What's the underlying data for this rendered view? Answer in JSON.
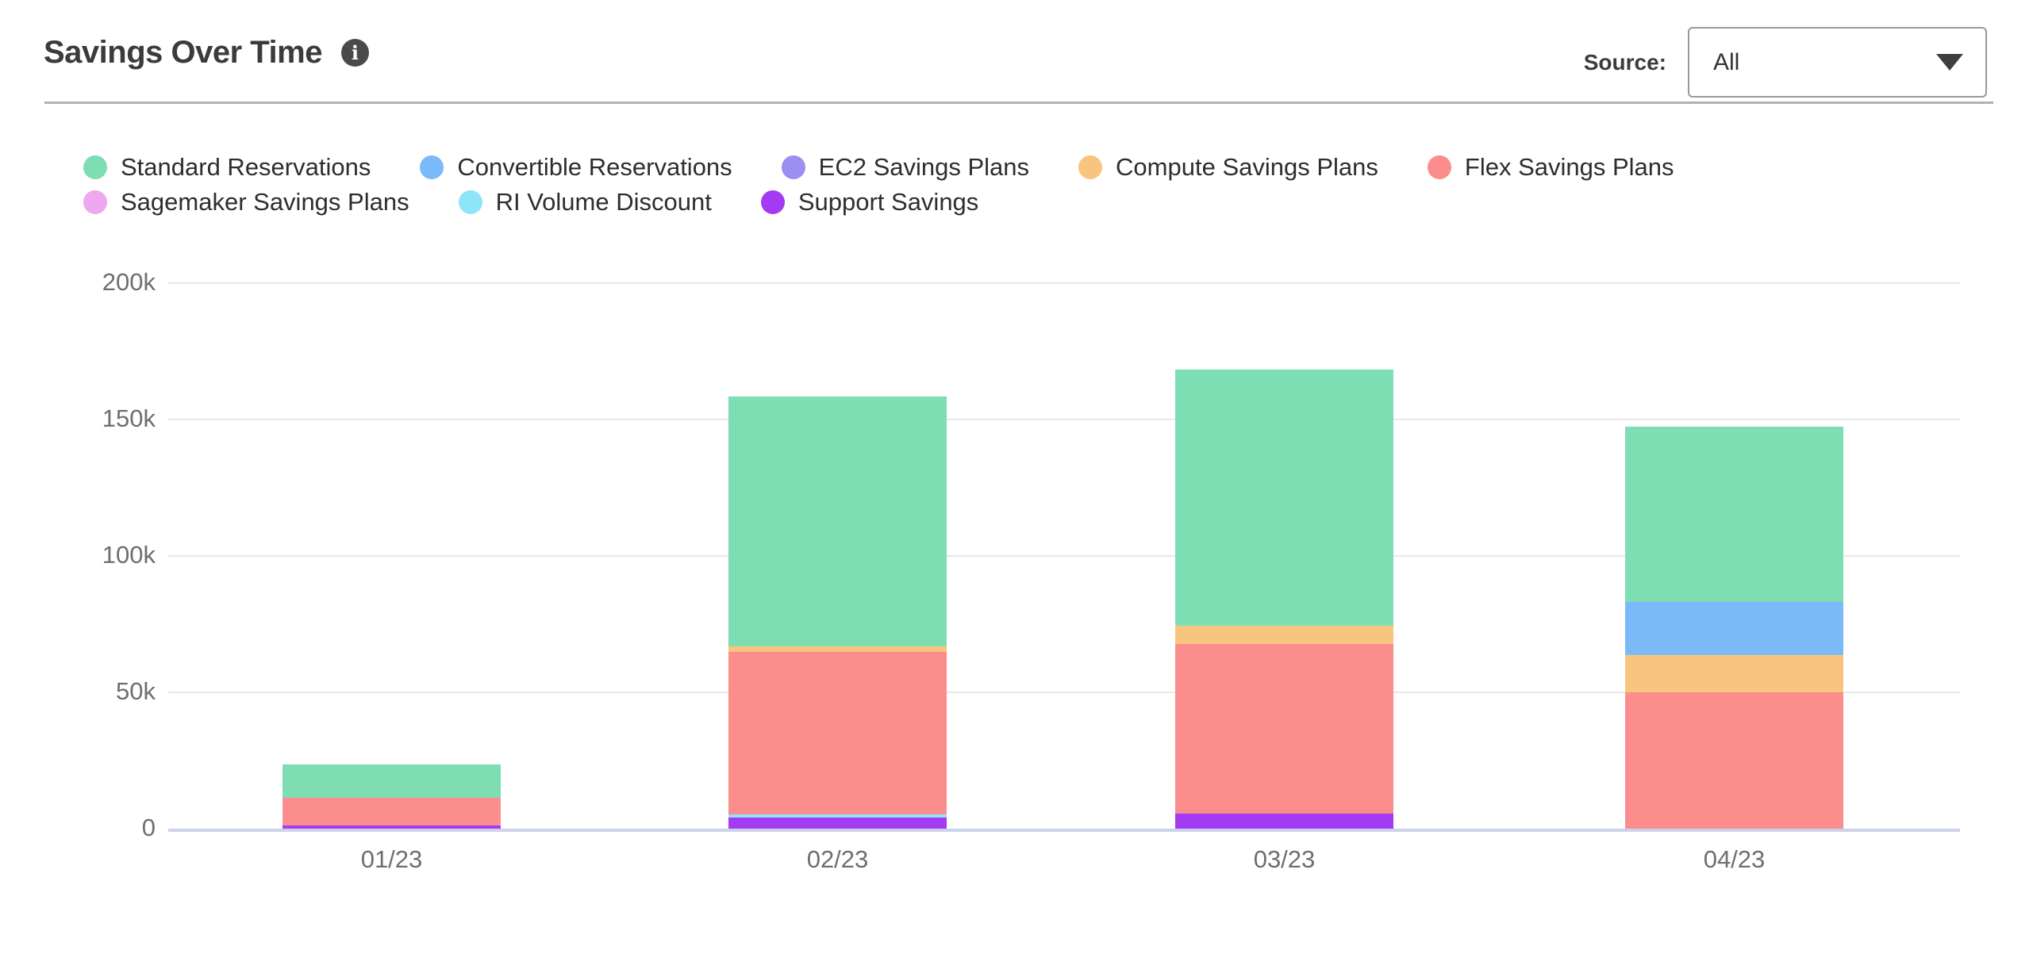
{
  "header": {
    "title": "Savings Over Time",
    "info_glyph": "i",
    "source_label": "Source:",
    "source_value": "All"
  },
  "legend": {
    "rows": [
      [
        0,
        1,
        2,
        3,
        4
      ],
      [
        5,
        6,
        7
      ]
    ],
    "position": "top-left"
  },
  "chart_data": {
    "type": "bar",
    "stacked": true,
    "title": "Savings Over Time",
    "xlabel": "",
    "ylabel": "",
    "unit": "k (thousands)",
    "ylim": [
      0,
      200000
    ],
    "grid": "horizontal",
    "legend_position": "top-left",
    "stack_order": "bottom-to-top is reverse of series list (Support Savings at bottom, Standard Reservations on top)",
    "categories": [
      "01/23",
      "02/23",
      "03/23",
      "04/23"
    ],
    "yticks": [
      {
        "label": "0",
        "value": 0
      },
      {
        "label": "50k",
        "value": 50
      },
      {
        "label": "100k",
        "value": 100
      },
      {
        "label": "150k",
        "value": 150
      },
      {
        "label": "200k",
        "value": 200
      }
    ],
    "series": [
      {
        "name": "Standard Reservations",
        "color": "#7CDEB2",
        "values": [
          12.2,
          91.4,
          93.8,
          64.5
        ]
      },
      {
        "name": "Convertible Reservations",
        "color": "#7BBAF8",
        "values": [
          0,
          0,
          0,
          19.4
        ]
      },
      {
        "name": "EC2 Savings Plans",
        "color": "#9C8FF3",
        "values": [
          0,
          0,
          0,
          0
        ]
      },
      {
        "name": "Compute Savings Plans",
        "color": "#F8C57F",
        "values": [
          0,
          2.3,
          6.8,
          13.6
        ]
      },
      {
        "name": "Flex Savings Plans",
        "color": "#FC8D8D",
        "values": [
          10.2,
          59.4,
          62.1,
          50.0
        ]
      },
      {
        "name": "Sagemaker Savings Plans",
        "color": "#EFA7EF",
        "values": [
          0,
          0,
          0,
          0
        ]
      },
      {
        "name": "RI Volume Discount",
        "color": "#8EE4F9",
        "values": [
          0,
          1.2,
          0,
          0
        ]
      },
      {
        "name": "Support Savings",
        "color": "#A43BF3",
        "values": [
          1.1,
          4.1,
          5.6,
          0
        ]
      }
    ],
    "totals": [
      23.5,
      158.4,
      168.3,
      147.5
    ]
  }
}
